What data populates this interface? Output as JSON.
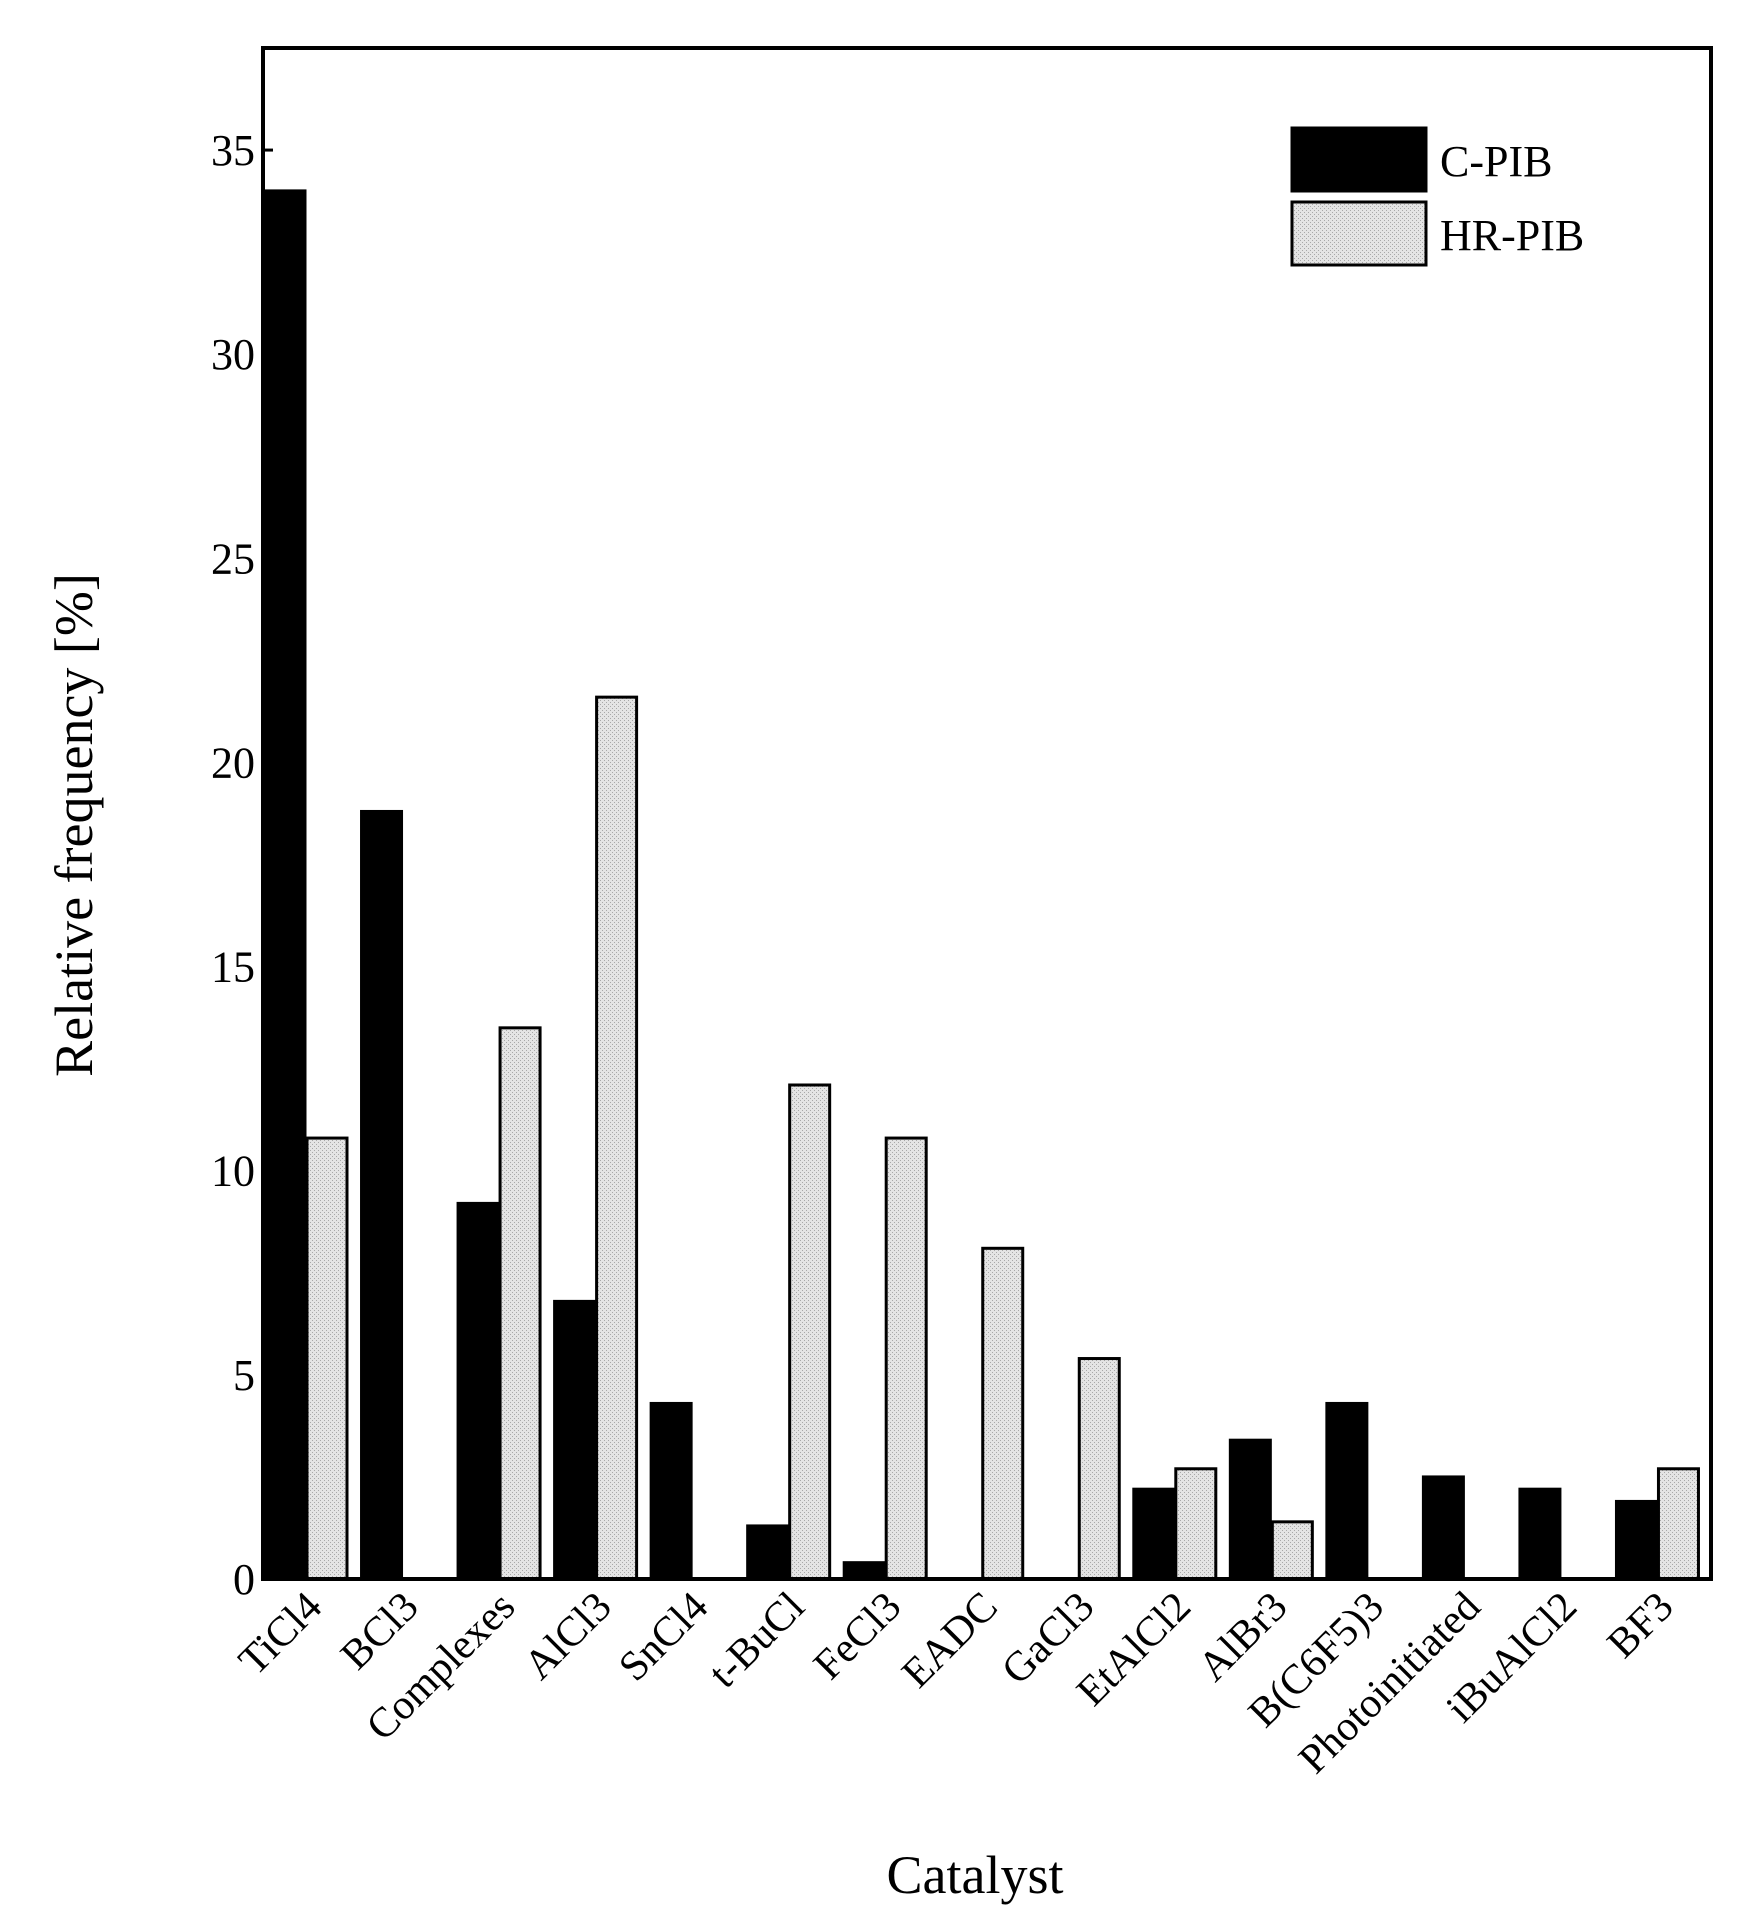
{
  "chart_data": {
    "type": "bar",
    "title": "",
    "xlabel": "Catalyst",
    "ylabel": "Relative frequency [%]",
    "ylim": [
      0,
      37.5
    ],
    "yticks": [
      0,
      5,
      10,
      15,
      20,
      25,
      30,
      35
    ],
    "categories": [
      "TiCl4",
      "BCl3",
      "Complexes",
      "AlCl3",
      "SnCl4",
      "t-BuCl",
      "FeCl3",
      "EADC",
      "GaCl3",
      "EtAlCl2",
      "AlBr3",
      "B(C6F5)3",
      "Photoinitiated",
      "iBuAlCl2",
      "BF3"
    ],
    "series": [
      {
        "name": "C-PIB",
        "color": "#000000",
        "values": [
          34.0,
          18.8,
          9.2,
          6.8,
          4.3,
          1.3,
          0.4,
          0,
          0,
          2.2,
          3.4,
          4.3,
          2.5,
          2.2,
          1.9
        ]
      },
      {
        "name": "HR-PIB",
        "color": "#d9d9d9",
        "values": [
          10.8,
          0,
          13.5,
          21.6,
          0,
          12.1,
          10.8,
          8.1,
          5.4,
          2.7,
          1.4,
          0,
          0,
          0,
          2.7
        ]
      }
    ],
    "legend_position": "top-right",
    "grid": false
  }
}
